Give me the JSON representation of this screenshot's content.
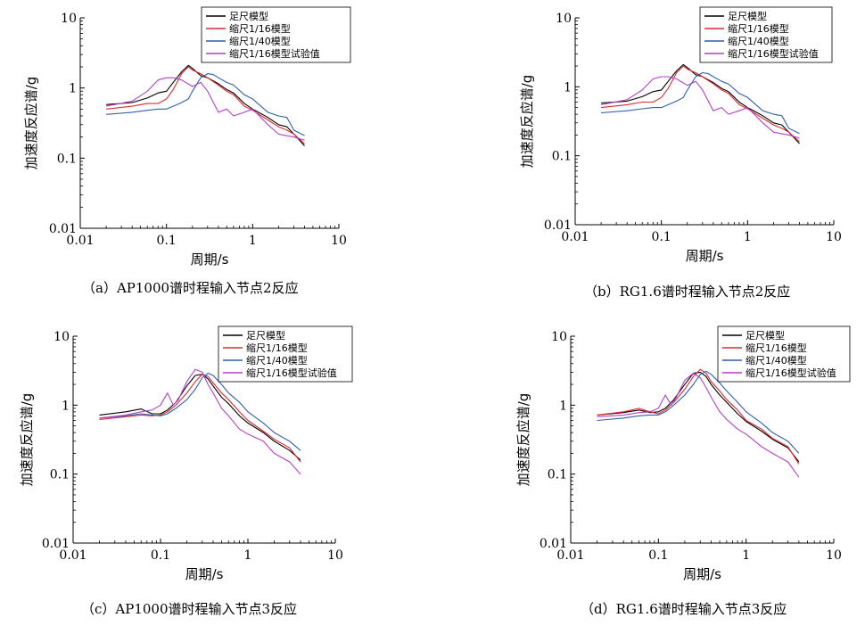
{
  "colors": {
    "full_scale": "#000000",
    "scale_1_16": "#e0282e",
    "scale_1_40": "#2f5fb0",
    "test_1_16": "#b43fc8"
  },
  "legend_labels": [
    "足尺模型",
    "缩尺1/16模型",
    "缩尺1/40模型",
    "缩尺1/16模型试验值"
  ],
  "chart_data": [
    {
      "type": "line",
      "caption": "（a）AP1000谱时程输入节点2反应",
      "xlabel": "周期/s",
      "ylabel": "加速度反应谱/g",
      "xscale": "log",
      "yscale": "log",
      "xlim": [
        0.01,
        10
      ],
      "ylim": [
        0.01,
        10
      ],
      "xticks": [
        "0.01",
        "0.1",
        "1",
        "10"
      ],
      "yticks": [
        "0.01",
        "0.1",
        "1",
        "10"
      ],
      "legend": "top-right",
      "series": [
        {
          "name": "足尺模型",
          "color": "#000000",
          "x": [
            0.02,
            0.04,
            0.06,
            0.08,
            0.1,
            0.12,
            0.15,
            0.18,
            0.2,
            0.25,
            0.3,
            0.4,
            0.5,
            0.6,
            0.8,
            1.0,
            1.5,
            2.0,
            2.5,
            3.0,
            4.0
          ],
          "y": [
            0.58,
            0.62,
            0.72,
            0.85,
            0.9,
            1.2,
            1.7,
            2.1,
            1.9,
            1.5,
            1.4,
            1.15,
            0.95,
            0.85,
            0.6,
            0.5,
            0.38,
            0.3,
            0.28,
            0.22,
            0.15
          ]
        },
        {
          "name": "缩尺1/16模型",
          "color": "#e0282e",
          "x": [
            0.02,
            0.04,
            0.06,
            0.08,
            0.1,
            0.12,
            0.15,
            0.18,
            0.2,
            0.25,
            0.3,
            0.4,
            0.5,
            0.6,
            0.8,
            1.0,
            1.5,
            2.0,
            2.5,
            3.0,
            4.0
          ],
          "y": [
            0.5,
            0.55,
            0.6,
            0.6,
            0.7,
            0.95,
            1.6,
            2.0,
            1.8,
            1.6,
            1.4,
            1.1,
            0.9,
            0.8,
            0.55,
            0.48,
            0.35,
            0.28,
            0.25,
            0.22,
            0.16
          ]
        },
        {
          "name": "缩尺1/40模型",
          "color": "#2f5fb0",
          "x": [
            0.02,
            0.04,
            0.06,
            0.08,
            0.1,
            0.12,
            0.15,
            0.18,
            0.2,
            0.25,
            0.3,
            0.35,
            0.4,
            0.5,
            0.6,
            0.8,
            1.0,
            1.5,
            2.0,
            2.5,
            3.0,
            4.0
          ],
          "y": [
            0.42,
            0.45,
            0.48,
            0.5,
            0.5,
            0.55,
            0.62,
            0.7,
            0.9,
            1.4,
            1.6,
            1.55,
            1.4,
            1.2,
            1.1,
            0.8,
            0.7,
            0.45,
            0.4,
            0.38,
            0.25,
            0.21
          ]
        },
        {
          "name": "缩尺1/16模型试验值",
          "color": "#b43fc8",
          "x": [
            0.02,
            0.04,
            0.06,
            0.08,
            0.1,
            0.12,
            0.15,
            0.2,
            0.25,
            0.3,
            0.4,
            0.5,
            0.6,
            0.8,
            1.0,
            1.5,
            2.0,
            3.0,
            4.0
          ],
          "y": [
            0.55,
            0.65,
            0.9,
            1.3,
            1.4,
            1.4,
            1.3,
            1.05,
            1.2,
            0.9,
            0.45,
            0.5,
            0.4,
            0.45,
            0.5,
            0.3,
            0.22,
            0.2,
            0.18
          ]
        }
      ]
    },
    {
      "type": "line",
      "caption": "（b）RG1.6谱时程输入节点2反应",
      "xlabel": "周期/s",
      "ylabel": "加速度反应谱/g",
      "xscale": "log",
      "yscale": "log",
      "xlim": [
        0.01,
        10
      ],
      "ylim": [
        0.01,
        10
      ],
      "xticks": [
        "0.01",
        "0.1",
        "1",
        "10"
      ],
      "yticks": [
        "0.01",
        "0.1",
        "1",
        "10"
      ],
      "legend": "top-right",
      "series": [
        {
          "name": "足尺模型",
          "color": "#000000",
          "x": [
            0.02,
            0.04,
            0.06,
            0.08,
            0.1,
            0.12,
            0.15,
            0.18,
            0.2,
            0.25,
            0.3,
            0.4,
            0.5,
            0.6,
            0.8,
            1.0,
            1.5,
            2.0,
            2.5,
            3.0,
            4.0
          ],
          "y": [
            0.58,
            0.62,
            0.72,
            0.85,
            0.9,
            1.2,
            1.7,
            2.1,
            1.9,
            1.5,
            1.4,
            1.15,
            0.95,
            0.85,
            0.6,
            0.5,
            0.38,
            0.3,
            0.28,
            0.22,
            0.15
          ]
        },
        {
          "name": "缩尺1/16模型",
          "color": "#e0282e",
          "x": [
            0.02,
            0.04,
            0.06,
            0.08,
            0.1,
            0.12,
            0.15,
            0.18,
            0.2,
            0.25,
            0.3,
            0.4,
            0.5,
            0.6,
            0.8,
            1.0,
            1.5,
            2.0,
            2.5,
            3.0,
            4.0
          ],
          "y": [
            0.5,
            0.55,
            0.6,
            0.6,
            0.7,
            0.95,
            1.6,
            2.0,
            1.8,
            1.6,
            1.4,
            1.1,
            0.9,
            0.8,
            0.55,
            0.48,
            0.35,
            0.28,
            0.25,
            0.22,
            0.16
          ]
        },
        {
          "name": "缩尺1/40模型",
          "color": "#2f5fb0",
          "x": [
            0.02,
            0.04,
            0.06,
            0.08,
            0.1,
            0.12,
            0.15,
            0.18,
            0.2,
            0.25,
            0.3,
            0.35,
            0.4,
            0.5,
            0.6,
            0.8,
            1.0,
            1.5,
            2.0,
            2.5,
            3.0,
            4.0
          ],
          "y": [
            0.42,
            0.45,
            0.48,
            0.5,
            0.5,
            0.55,
            0.62,
            0.7,
            0.9,
            1.4,
            1.6,
            1.55,
            1.4,
            1.2,
            1.1,
            0.8,
            0.7,
            0.45,
            0.4,
            0.38,
            0.25,
            0.21
          ]
        },
        {
          "name": "缩尺1/16模型试验值",
          "color": "#b43fc8",
          "x": [
            0.02,
            0.04,
            0.06,
            0.08,
            0.1,
            0.12,
            0.15,
            0.2,
            0.25,
            0.3,
            0.4,
            0.5,
            0.6,
            0.8,
            1.0,
            1.5,
            2.0,
            3.0,
            4.0
          ],
          "y": [
            0.55,
            0.65,
            0.9,
            1.3,
            1.4,
            1.4,
            1.3,
            1.05,
            1.2,
            0.9,
            0.45,
            0.5,
            0.4,
            0.45,
            0.5,
            0.3,
            0.22,
            0.2,
            0.18
          ]
        }
      ]
    },
    {
      "type": "line",
      "caption": "（c）AP1000谱时程输入节点3反应",
      "xlabel": "周期/s",
      "ylabel": "加速度反应谱/g",
      "xscale": "log",
      "yscale": "log",
      "xlim": [
        0.01,
        10
      ],
      "ylim": [
        0.01,
        10
      ],
      "xticks": [
        "0.01",
        "0.1",
        "1",
        "10"
      ],
      "yticks": [
        "0.01",
        "0.1",
        "1",
        "10"
      ],
      "legend": "top-right",
      "series": [
        {
          "name": "足尺模型",
          "color": "#000000",
          "x": [
            0.02,
            0.04,
            0.06,
            0.08,
            0.1,
            0.12,
            0.15,
            0.2,
            0.25,
            0.3,
            0.35,
            0.4,
            0.5,
            0.6,
            0.8,
            1.0,
            1.5,
            2.0,
            3.0,
            4.0
          ],
          "y": [
            0.72,
            0.8,
            0.88,
            0.75,
            0.75,
            0.85,
            1.1,
            1.9,
            2.7,
            2.8,
            2.4,
            1.9,
            1.3,
            1.05,
            0.7,
            0.55,
            0.4,
            0.3,
            0.22,
            0.16
          ]
        },
        {
          "name": "缩尺1/16模型",
          "color": "#e0282e",
          "x": [
            0.02,
            0.04,
            0.06,
            0.08,
            0.1,
            0.12,
            0.15,
            0.2,
            0.25,
            0.3,
            0.35,
            0.4,
            0.5,
            0.6,
            0.8,
            1.0,
            1.5,
            2.0,
            3.0,
            4.0
          ],
          "y": [
            0.62,
            0.68,
            0.72,
            0.7,
            0.72,
            0.8,
            1.0,
            1.5,
            2.2,
            2.8,
            2.6,
            2.1,
            1.5,
            1.2,
            0.8,
            0.6,
            0.42,
            0.32,
            0.24,
            0.15
          ]
        },
        {
          "name": "缩尺1/40模型",
          "color": "#2f5fb0",
          "x": [
            0.02,
            0.04,
            0.06,
            0.08,
            0.1,
            0.12,
            0.15,
            0.2,
            0.25,
            0.3,
            0.35,
            0.4,
            0.5,
            0.6,
            0.8,
            1.0,
            1.5,
            2.0,
            3.0,
            4.0
          ],
          "y": [
            0.65,
            0.7,
            0.75,
            0.72,
            0.7,
            0.75,
            0.9,
            1.2,
            1.7,
            2.5,
            2.9,
            2.7,
            2.0,
            1.5,
            1.1,
            0.8,
            0.55,
            0.4,
            0.3,
            0.22
          ]
        },
        {
          "name": "缩尺1/16模型试验值",
          "color": "#b43fc8",
          "x": [
            0.02,
            0.04,
            0.06,
            0.08,
            0.1,
            0.12,
            0.14,
            0.16,
            0.2,
            0.25,
            0.3,
            0.35,
            0.4,
            0.5,
            0.6,
            0.8,
            1.0,
            1.5,
            2.0,
            3.0,
            4.0
          ],
          "y": [
            0.65,
            0.72,
            0.8,
            0.85,
            1.0,
            1.5,
            1.0,
            1.2,
            2.2,
            3.3,
            3.0,
            2.0,
            1.5,
            0.9,
            0.7,
            0.45,
            0.38,
            0.3,
            0.2,
            0.15,
            0.1
          ]
        }
      ]
    },
    {
      "type": "line",
      "caption": "（d）RG1.6谱时程输入节点3反应",
      "xlabel": "周期/s",
      "ylabel": "加速度反应谱/g",
      "xscale": "log",
      "yscale": "log",
      "xlim": [
        0.01,
        10
      ],
      "ylim": [
        0.01,
        10
      ],
      "xticks": [
        "0.01",
        "0.1",
        "1",
        "10"
      ],
      "yticks": [
        "0.01",
        "0.1",
        "1",
        "10"
      ],
      "legend": "top-right",
      "series": [
        {
          "name": "足尺模型",
          "color": "#000000",
          "x": [
            0.02,
            0.04,
            0.06,
            0.08,
            0.1,
            0.12,
            0.15,
            0.2,
            0.25,
            0.3,
            0.35,
            0.4,
            0.5,
            0.6,
            0.8,
            1.0,
            1.5,
            2.0,
            3.0,
            4.0
          ],
          "y": [
            0.72,
            0.78,
            0.85,
            0.78,
            0.8,
            0.9,
            1.2,
            2.0,
            2.9,
            3.0,
            2.6,
            2.0,
            1.4,
            1.1,
            0.75,
            0.58,
            0.42,
            0.32,
            0.24,
            0.15
          ]
        },
        {
          "name": "缩尺1/16模型",
          "color": "#e0282e",
          "x": [
            0.02,
            0.04,
            0.06,
            0.08,
            0.1,
            0.12,
            0.15,
            0.2,
            0.25,
            0.3,
            0.35,
            0.4,
            0.5,
            0.6,
            0.8,
            1.0,
            1.5,
            2.0,
            3.0,
            4.0
          ],
          "y": [
            0.72,
            0.8,
            0.9,
            0.8,
            0.75,
            0.85,
            1.1,
            1.7,
            2.6,
            3.3,
            2.9,
            2.2,
            1.6,
            1.2,
            0.85,
            0.6,
            0.45,
            0.33,
            0.25,
            0.14
          ]
        },
        {
          "name": "缩尺1/40模型",
          "color": "#2f5fb0",
          "x": [
            0.02,
            0.04,
            0.06,
            0.08,
            0.1,
            0.12,
            0.15,
            0.2,
            0.25,
            0.3,
            0.35,
            0.4,
            0.5,
            0.6,
            0.8,
            1.0,
            1.5,
            2.0,
            3.0,
            4.0
          ],
          "y": [
            0.6,
            0.65,
            0.7,
            0.72,
            0.72,
            0.8,
            1.0,
            1.4,
            2.0,
            2.8,
            3.1,
            2.8,
            2.1,
            1.6,
            1.1,
            0.8,
            0.55,
            0.4,
            0.3,
            0.2
          ]
        },
        {
          "name": "缩尺1/16模型试验值",
          "color": "#b43fc8",
          "x": [
            0.02,
            0.04,
            0.06,
            0.08,
            0.1,
            0.12,
            0.14,
            0.16,
            0.2,
            0.25,
            0.3,
            0.35,
            0.4,
            0.5,
            0.6,
            0.8,
            1.0,
            1.5,
            2.0,
            3.0,
            4.0
          ],
          "y": [
            0.68,
            0.72,
            0.78,
            0.8,
            0.9,
            1.4,
            1.0,
            1.3,
            2.3,
            2.9,
            2.5,
            1.8,
            1.3,
            0.8,
            0.62,
            0.45,
            0.38,
            0.25,
            0.2,
            0.15,
            0.09
          ]
        }
      ]
    }
  ]
}
